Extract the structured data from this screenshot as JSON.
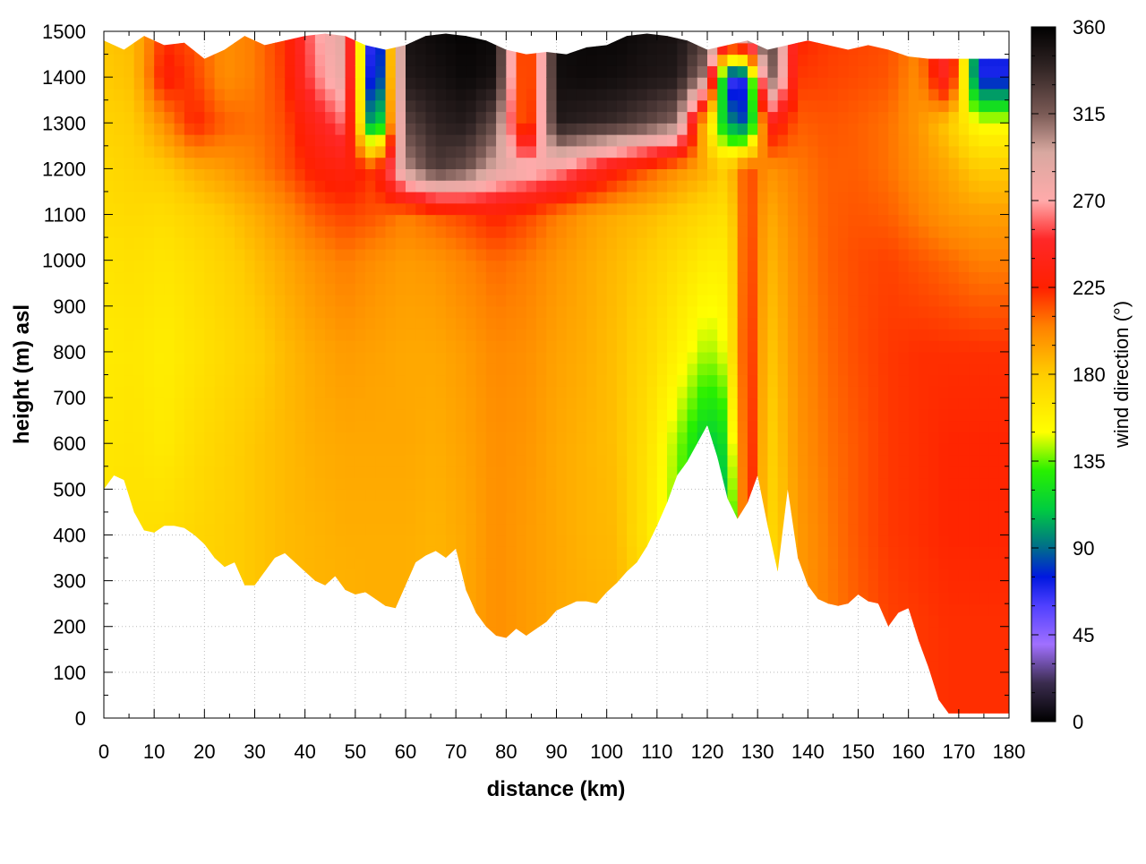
{
  "chart_data": {
    "type": "heatmap",
    "xlabel": "distance (km)",
    "ylabel": "height (m) asl",
    "colorbar_label": "wind direction (°)",
    "xlim": [
      0,
      180
    ],
    "ylim": [
      0,
      1500
    ],
    "x_ticks": [
      "0",
      "10",
      "20",
      "30",
      "40",
      "50",
      "60",
      "70",
      "80",
      "90",
      "100",
      "110",
      "120",
      "130",
      "140",
      "150",
      "160",
      "170",
      "180"
    ],
    "y_ticks": [
      "0",
      "100",
      "200",
      "300",
      "400",
      "500",
      "600",
      "700",
      "800",
      "900",
      "1000",
      "1100",
      "1200",
      "1300",
      "1400",
      "1500"
    ],
    "colorbar_ticks": [
      "0",
      "45",
      "90",
      "135",
      "180",
      "225",
      "270",
      "315",
      "360"
    ],
    "colorbar_range": [
      0,
      360
    ],
    "grid": true,
    "terrain_profile": {
      "x": [
        0,
        2,
        4,
        6,
        8,
        10,
        12,
        14,
        16,
        18,
        20,
        22,
        24,
        26,
        28,
        30,
        32,
        34,
        36,
        38,
        40,
        42,
        44,
        46,
        48,
        50,
        52,
        54,
        56,
        58,
        60,
        62,
        64,
        66,
        68,
        70,
        72,
        74,
        76,
        78,
        80,
        82,
        84,
        86,
        88,
        90,
        92,
        94,
        96,
        98,
        100,
        102,
        104,
        106,
        108,
        110,
        112,
        114,
        116,
        118,
        120,
        122,
        124,
        126,
        128,
        130,
        132,
        134,
        136,
        138,
        140,
        142,
        144,
        146,
        148,
        150,
        152,
        154,
        156,
        158,
        160,
        162,
        164,
        166,
        168,
        170,
        172,
        174,
        176,
        178,
        180
      ],
      "height": [
        500,
        530,
        520,
        450,
        410,
        405,
        420,
        420,
        415,
        400,
        380,
        350,
        330,
        340,
        290,
        290,
        320,
        350,
        360,
        340,
        320,
        300,
        290,
        310,
        280,
        270,
        275,
        260,
        245,
        240,
        290,
        340,
        355,
        365,
        350,
        370,
        280,
        230,
        200,
        180,
        175,
        195,
        180,
        195,
        210,
        235,
        245,
        255,
        255,
        250,
        275,
        295,
        320,
        340,
        375,
        420,
        470,
        530,
        560,
        600,
        640,
        570,
        480,
        435,
        470,
        530,
        420,
        320,
        500,
        350,
        290,
        260,
        250,
        245,
        250,
        270,
        255,
        250,
        200,
        230,
        240,
        170,
        110,
        40,
        10,
        10,
        10,
        10,
        10,
        10,
        10
      ]
    },
    "model_top": {
      "x": [
        0,
        4,
        8,
        12,
        16,
        20,
        24,
        28,
        32,
        36,
        40,
        44,
        48,
        52,
        56,
        60,
        64,
        68,
        72,
        76,
        80,
        84,
        88,
        92,
        96,
        100,
        104,
        108,
        112,
        116,
        120,
        124,
        128,
        132,
        136,
        140,
        144,
        148,
        152,
        156,
        160,
        164,
        168,
        172,
        176,
        180
      ],
      "height": [
        1480,
        1460,
        1490,
        1470,
        1475,
        1440,
        1460,
        1490,
        1470,
        1480,
        1490,
        1495,
        1490,
        1470,
        1460,
        1470,
        1490,
        1495,
        1490,
        1480,
        1460,
        1450,
        1455,
        1450,
        1465,
        1470,
        1490,
        1495,
        1490,
        1480,
        1460,
        1470,
        1480,
        1460,
        1470,
        1480,
        1470,
        1460,
        1470,
        1460,
        1445,
        1440,
        1440,
        1440,
        1440,
        1440
      ]
    },
    "direction_field": {
      "x": [
        0,
        6,
        12,
        18,
        24,
        30,
        36,
        42,
        48,
        54,
        60,
        66,
        72,
        78,
        84,
        90,
        96,
        102,
        108,
        114,
        120,
        124,
        128,
        132,
        138,
        144,
        150,
        156,
        162,
        168,
        174,
        180
      ],
      "levels": [
        0,
        200,
        400,
        600,
        800,
        1000,
        1100,
        1200,
        1300,
        1400,
        1500
      ],
      "direction_deg": [
        [
          168,
          170,
          172,
          175,
          178,
          182,
          186,
          188,
          188,
          190,
          190,
          188,
          192,
          200,
          196,
          192,
          190,
          188,
          178,
          170,
          160,
          150,
          185,
          168,
          196,
          205,
          212,
          218,
          220,
          222,
          222,
          222
        ],
        [
          168,
          170,
          172,
          175,
          178,
          182,
          186,
          188,
          188,
          190,
          190,
          188,
          192,
          200,
          196,
          192,
          190,
          188,
          178,
          170,
          160,
          150,
          185,
          168,
          196,
          205,
          212,
          218,
          220,
          222,
          222,
          222
        ],
        [
          166,
          168,
          170,
          174,
          178,
          182,
          186,
          188,
          190,
          190,
          190,
          188,
          192,
          200,
          196,
          192,
          188,
          186,
          165,
          135,
          100,
          95,
          240,
          170,
          196,
          206,
          214,
          220,
          222,
          224,
          224,
          224
        ],
        [
          164,
          166,
          162,
          170,
          176,
          182,
          186,
          190,
          192,
          192,
          192,
          190,
          194,
          200,
          198,
          192,
          188,
          184,
          168,
          140,
          110,
          120,
          235,
          175,
          198,
          208,
          214,
          220,
          222,
          224,
          224,
          224
        ],
        [
          162,
          164,
          160,
          166,
          172,
          178,
          186,
          192,
          196,
          194,
          192,
          192,
          196,
          202,
          200,
          194,
          190,
          184,
          174,
          158,
          140,
          150,
          230,
          180,
          200,
          210,
          216,
          220,
          222,
          222,
          222,
          222
        ],
        [
          166,
          168,
          165,
          170,
          176,
          184,
          192,
          200,
          206,
          200,
          196,
          198,
          204,
          210,
          206,
          198,
          192,
          186,
          180,
          170,
          160,
          160,
          225,
          186,
          202,
          212,
          216,
          218,
          214,
          210,
          205,
          205
        ],
        [
          170,
          172,
          170,
          176,
          182,
          190,
          200,
          212,
          218,
          214,
          205,
          212,
          218,
          226,
          218,
          206,
          196,
          190,
          186,
          180,
          172,
          168,
          222,
          190,
          204,
          212,
          214,
          212,
          205,
          198,
          195,
          195
        ],
        [
          172,
          176,
          180,
          190,
          196,
          204,
          214,
          228,
          234,
          220,
          300,
          330,
          320,
          290,
          280,
          270,
          250,
          230,
          214,
          200,
          190,
          178,
          220,
          198,
          206,
          212,
          212,
          208,
          200,
          192,
          180,
          180
        ],
        [
          176,
          180,
          200,
          226,
          212,
          208,
          216,
          240,
          262,
          70,
          325,
          340,
          345,
          320,
          195,
          345,
          340,
          335,
          325,
          310,
          170,
          100,
          80,
          240,
          212,
          214,
          212,
          208,
          198,
          180,
          150,
          150
        ],
        [
          180,
          184,
          230,
          218,
          200,
          206,
          220,
          262,
          285,
          30,
          345,
          350,
          355,
          350,
          190,
          352,
          354,
          352,
          348,
          345,
          300,
          60,
          70,
          330,
          220,
          218,
          216,
          214,
          200,
          250,
          70,
          70
        ],
        [
          182,
          186,
          222,
          214,
          200,
          206,
          222,
          266,
          290,
          20,
          350,
          355,
          358,
          355,
          190,
          354,
          356,
          356,
          352,
          350,
          330,
          300,
          320,
          340,
          226,
          220,
          218,
          216,
          205,
          255,
          75,
          75
        ]
      ]
    }
  }
}
